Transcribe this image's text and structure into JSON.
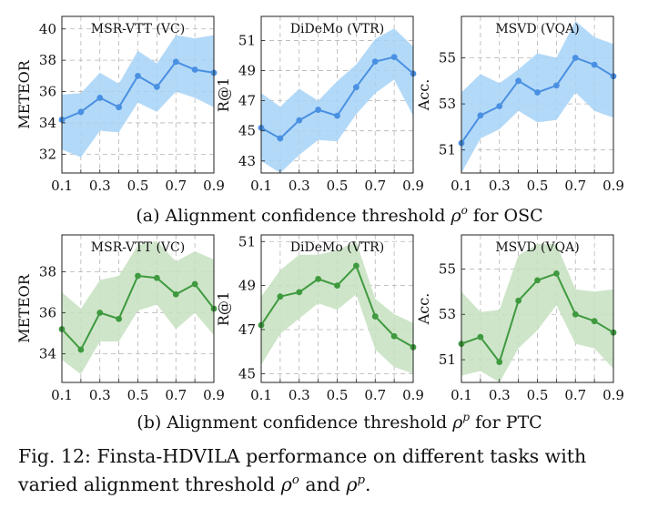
{
  "figure": {
    "row_captions": [
      {
        "prefix": "(a) Alignment confidence threshold ",
        "symbol": "ρ",
        "sup": "o",
        "suffix": " for OSC"
      },
      {
        "prefix": "(b) Alignment confidence threshold ",
        "symbol": "ρ",
        "sup": "p",
        "suffix": " for PTC"
      }
    ],
    "caption": {
      "part1": "Fig. 12: Finsta-HDVILA performance on different tasks with varied alignment threshold ",
      "sym1": "ρ",
      "sup1": "o",
      "middle": " and ",
      "sym2": "ρ",
      "sup2": "p",
      "end": "."
    }
  },
  "colors": {
    "row_a_line": "#4a90e2",
    "row_a_band": "#a6d2f7",
    "row_b_line": "#3f9a3f",
    "row_b_band": "#c5e1c0",
    "grid": "#b4b4b4"
  },
  "chart_data": [
    {
      "type": "line",
      "row": 0,
      "col": 0,
      "title": "MSR-VTT (VC)",
      "xlabel": "",
      "ylabel": "METEOR",
      "x": [
        0.1,
        0.2,
        0.3,
        0.4,
        0.5,
        0.6,
        0.7,
        0.8,
        0.9
      ],
      "xticks": [
        "0.1",
        "0.3",
        "0.5",
        "0.7",
        "0.9"
      ],
      "ylim": [
        30.8,
        40.8
      ],
      "yticks": [
        32,
        34,
        36,
        38,
        40
      ],
      "series": [
        {
          "values": [
            34.2,
            34.7,
            35.6,
            35.0,
            37.0,
            36.3,
            37.9,
            37.4,
            37.2
          ],
          "upper": [
            35.8,
            35.9,
            37.2,
            36.5,
            38.6,
            37.8,
            39.6,
            39.4,
            39.6
          ],
          "lower": [
            32.3,
            31.8,
            33.5,
            33.4,
            35.3,
            34.7,
            36.0,
            35.6,
            35.0
          ]
        }
      ],
      "grid": true
    },
    {
      "type": "line",
      "row": 0,
      "col": 1,
      "title": "DiDeMo (VTR)",
      "xlabel": "",
      "ylabel": "R@1",
      "x": [
        0.1,
        0.2,
        0.3,
        0.4,
        0.5,
        0.6,
        0.7,
        0.8,
        0.9
      ],
      "xticks": [
        "0.1",
        "0.3",
        "0.5",
        "0.7",
        "0.9"
      ],
      "ylim": [
        42.2,
        52.6
      ],
      "yticks": [
        43,
        45,
        47,
        49,
        51
      ],
      "series": [
        {
          "values": [
            45.2,
            44.5,
            45.7,
            46.4,
            46.0,
            47.9,
            49.6,
            49.9,
            48.8
          ],
          "upper": [
            47.5,
            46.6,
            47.8,
            47.0,
            48.3,
            49.4,
            51.1,
            51.8,
            50.6
          ],
          "lower": [
            43.0,
            42.2,
            43.4,
            44.4,
            44.3,
            46.1,
            47.5,
            48.4,
            46.0
          ]
        }
      ],
      "grid": true
    },
    {
      "type": "line",
      "row": 0,
      "col": 2,
      "title": "MSVD  (VQA)",
      "xlabel": "",
      "ylabel": "Acc.",
      "x": [
        0.1,
        0.2,
        0.3,
        0.4,
        0.5,
        0.6,
        0.7,
        0.8,
        0.9
      ],
      "xticks": [
        "0.1",
        "0.3",
        "0.5",
        "0.7",
        "0.9"
      ],
      "ylim": [
        50.0,
        56.8
      ],
      "yticks": [
        51,
        53,
        55
      ],
      "series": [
        {
          "values": [
            51.3,
            52.5,
            52.9,
            54.0,
            53.5,
            53.8,
            55.0,
            54.7,
            54.2
          ],
          "upper": [
            53.5,
            54.3,
            53.9,
            54.5,
            55.2,
            55.0,
            56.6,
            55.9,
            55.6
          ],
          "lower": [
            50.0,
            51.5,
            51.9,
            52.7,
            52.2,
            52.3,
            53.5,
            52.7,
            52.4
          ]
        }
      ],
      "grid": true
    },
    {
      "type": "line",
      "row": 1,
      "col": 0,
      "title": "MSR-VTT (VC)",
      "xlabel": "",
      "ylabel": "METEOR",
      "x": [
        0.1,
        0.2,
        0.3,
        0.4,
        0.5,
        0.6,
        0.7,
        0.8,
        0.9
      ],
      "xticks": [
        "0.1",
        "0.3",
        "0.5",
        "0.7",
        "0.9"
      ],
      "ylim": [
        32.6,
        39.8
      ],
      "yticks": [
        34,
        36,
        38
      ],
      "series": [
        {
          "values": [
            35.2,
            34.2,
            36.0,
            35.7,
            37.8,
            37.7,
            36.9,
            37.4,
            36.2
          ],
          "upper": [
            37.0,
            36.2,
            37.6,
            37.8,
            39.3,
            39.5,
            38.5,
            39.0,
            38.6
          ],
          "lower": [
            33.7,
            33.0,
            34.6,
            34.6,
            36.1,
            36.4,
            35.2,
            36.0,
            34.9
          ]
        }
      ],
      "grid": true
    },
    {
      "type": "line",
      "row": 1,
      "col": 1,
      "title": "DiDeMo (VTR)",
      "xlabel": "",
      "ylabel": "R@1",
      "x": [
        0.1,
        0.2,
        0.3,
        0.4,
        0.5,
        0.6,
        0.7,
        0.8,
        0.9
      ],
      "xticks": [
        "0.1",
        "0.3",
        "0.5",
        "0.7",
        "0.9"
      ],
      "ylim": [
        44.6,
        51.3
      ],
      "yticks": [
        45,
        47,
        49,
        51
      ],
      "series": [
        {
          "values": [
            47.2,
            48.5,
            48.7,
            49.3,
            49.0,
            49.9,
            47.6,
            46.7,
            46.2
          ],
          "upper": [
            48.5,
            49.7,
            50.4,
            50.4,
            50.6,
            51.0,
            48.4,
            47.7,
            47.3
          ],
          "lower": [
            45.4,
            46.8,
            47.5,
            48.2,
            47.9,
            48.6,
            46.1,
            45.3,
            45.0
          ]
        }
      ],
      "grid": true
    },
    {
      "type": "line",
      "row": 1,
      "col": 2,
      "title": "MSVD  (VQA)",
      "xlabel": "",
      "ylabel": "Acc.",
      "x": [
        0.1,
        0.2,
        0.3,
        0.4,
        0.5,
        0.6,
        0.7,
        0.8,
        0.9
      ],
      "xticks": [
        "0.1",
        "0.3",
        "0.5",
        "0.7",
        "0.9"
      ],
      "ylim": [
        50.0,
        56.5
      ],
      "yticks": [
        51,
        53,
        55
      ],
      "series": [
        {
          "values": [
            51.7,
            52.0,
            50.9,
            53.6,
            54.5,
            54.8,
            53.0,
            52.7,
            52.2
          ],
          "upper": [
            54.0,
            53.1,
            53.2,
            55.6,
            56.1,
            56.1,
            54.1,
            54.0,
            54.1
          ],
          "lower": [
            50.3,
            50.5,
            50.0,
            51.5,
            52.3,
            53.4,
            51.7,
            51.5,
            50.6
          ]
        }
      ],
      "grid": true
    }
  ]
}
